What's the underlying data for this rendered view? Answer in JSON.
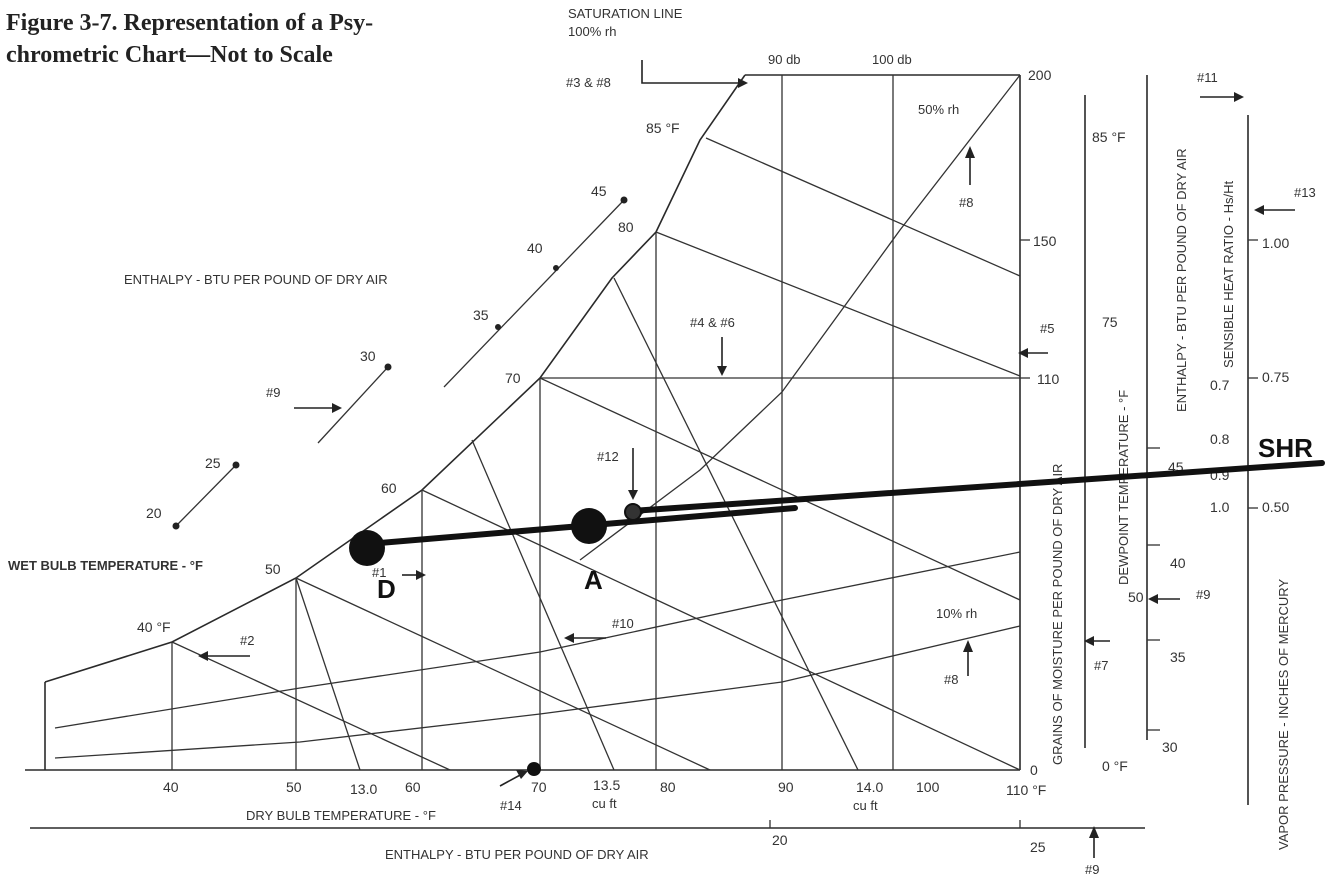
{
  "title": {
    "line1": "Figure 3-7. Representation of a Psy-",
    "line2": "chrometric Chart—Not to Scale"
  },
  "labels": {
    "saturation_line_1": "SATURATION LINE",
    "saturation_line_2": "100% rh",
    "db90": "90 db",
    "db100": "100 db",
    "ref_3_8": "#3 & #8",
    "ref_11": "#11",
    "ref_13": "#13",
    "ref_8_top": "#8",
    "ref_5": "#5",
    "ref_4_6": "#4 & #6",
    "ref_12": "#12",
    "ref_9_left": "#9",
    "ref_9_right": "#9",
    "ref_9_bottom": "#9",
    "ref_10": "#10",
    "ref_2": "#2",
    "ref_7": "#7",
    "ref_8_bottom": "#8",
    "ref_14": "#14",
    "ref_1": "#1",
    "rh50": "50% rh",
    "rh10": "10% rh",
    "enthalpy_top": "ENTHALPY - BTU PER POUND OF DRY AIR",
    "enthalpy_bottom": "ENTHALPY - BTU PER POUND OF DRY AIR",
    "enthalpy_vertical": "ENTHALPY - BTU PER POUND OF DRY AIR",
    "grains_vertical": "GRAINS OF MOISTURE PER POUND OF DRY AIR",
    "dewpoint_vertical": "DEWPOINT TEMPERATURE - °F",
    "shr_vertical": "SENSIBLE HEAT RATIO - Hs/Ht",
    "vapor_vertical": "VAPOR PRESSURE - INCHES OF MERCURY",
    "wet_bulb_axis": "WET BULB TEMPERATURE - °F",
    "dry_bulb_axis": "DRY BULB TEMPERATURE - °F",
    "point_D": "D",
    "point_A": "A",
    "SHR": "SHR"
  },
  "enthalpy_ticks": [
    "45",
    "40",
    "35",
    "30",
    "25",
    "20"
  ],
  "wet_bulb_ticks": [
    "85 °F",
    "80",
    "70",
    "60",
    "50",
    "40 °F"
  ],
  "dry_bulb_ticks": [
    "40",
    "50",
    "60",
    "70",
    "80",
    "90",
    "100",
    "110 °F"
  ],
  "volume_ticks": [
    "13.0",
    "13.5",
    "cu ft",
    "14.0",
    "cu ft"
  ],
  "grains_ticks": [
    "200",
    "150",
    "110",
    "0"
  ],
  "dewpoint_ticks": [
    "85 °F",
    "75",
    "45",
    "40",
    "50",
    "35",
    "30",
    "0 °F"
  ],
  "shr_ticks": [
    "1.00",
    "0.75",
    "0.7",
    "0.8",
    "0.9",
    "1.0",
    "0.50"
  ],
  "enthalpy_bottom_ticks": [
    "20",
    "25"
  ]
}
